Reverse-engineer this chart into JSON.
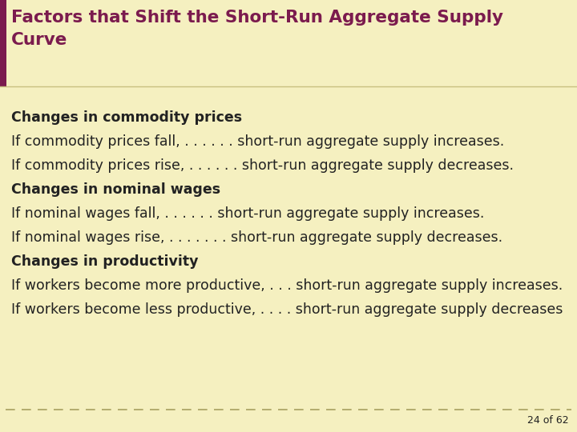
{
  "title_line1": "Factors that Shift the Short-Run Aggregate Supply",
  "title_line2": "Curve",
  "title_color": "#7B1B4E",
  "title_bg_color": "#F5F0C0",
  "header_bar_color": "#7B1B4E",
  "body_bg_color": "#F5F0C0",
  "separator_line_color": "#C8C080",
  "dashed_line_color": "#A8A060",
  "page_number": "24 of 62",
  "text_color": "#222222",
  "lines": [
    {
      "text": "Changes in commodity prices",
      "bold": true
    },
    {
      "text": "If commodity prices fall, . . . . . . short-run aggregate supply increases.",
      "bold": false
    },
    {
      "text": "If commodity prices rise, . . . . . . short-run aggregate supply decreases.",
      "bold": false
    },
    {
      "text": "Changes in nominal wages",
      "bold": true
    },
    {
      "text": "If nominal wages fall, . . . . . . short-run aggregate supply increases.",
      "bold": false
    },
    {
      "text": "If nominal wages rise, . . . . . . . short-run aggregate supply decreases.",
      "bold": false
    },
    {
      "text": "Changes in productivity",
      "bold": true
    },
    {
      "text": "If workers become more productive, . . . short-run aggregate supply increases.",
      "bold": false
    },
    {
      "text": "If workers become less productive, . . . . short-run aggregate supply decreases",
      "bold": false
    }
  ]
}
